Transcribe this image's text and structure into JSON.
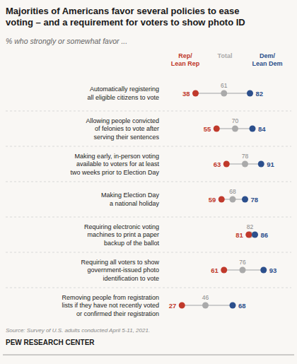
{
  "chart_data": {
    "type": "dumbbell",
    "title": "Majorities of Americans favor several policies to ease\nvoting – and a requirement for voters to show photo ID",
    "subtitle": "% who strongly or somewhat favor ...",
    "annotations": [
      "Source: Survey of U.S. adults conducted April 5-11, 2021.",
      "PEW RESEARCH CENTER"
    ],
    "categories": [
      "Automatically registering\nall eligible citizens to vote",
      "Allowing people convicted\nof felonies to vote after\nserving their sentences",
      "Making early, in-person voting\navailable to voters for at least\ntwo weeks prior to Election Day",
      "Making Election Day\na national holiday",
      "Requiring electronic voting\nmachines to print a paper\nbackup of the ballot",
      "Requiring all voters to show\ngovernment-issued photo\nidentification to vote",
      "Removing people from registration\nlists if they have not recently voted\nor confirmed their registration"
    ],
    "series": [
      {
        "name": "Rep/\nLean Rep",
        "color": "#c0392b",
        "values": [
          38,
          55,
          63,
          59,
          81,
          61,
          27
        ]
      },
      {
        "name": "Total",
        "color": "#aaaaaa",
        "values": [
          61,
          70,
          78,
          68,
          82,
          76,
          46
        ]
      },
      {
        "name": "Dem/\nLean Dem",
        "color": "#2c4f8c",
        "values": [
          82,
          84,
          91,
          78,
          86,
          93,
          68
        ]
      }
    ],
    "xlim": [
      20,
      100
    ],
    "data_labels": true,
    "tick_labels": false,
    "grid": false
  }
}
